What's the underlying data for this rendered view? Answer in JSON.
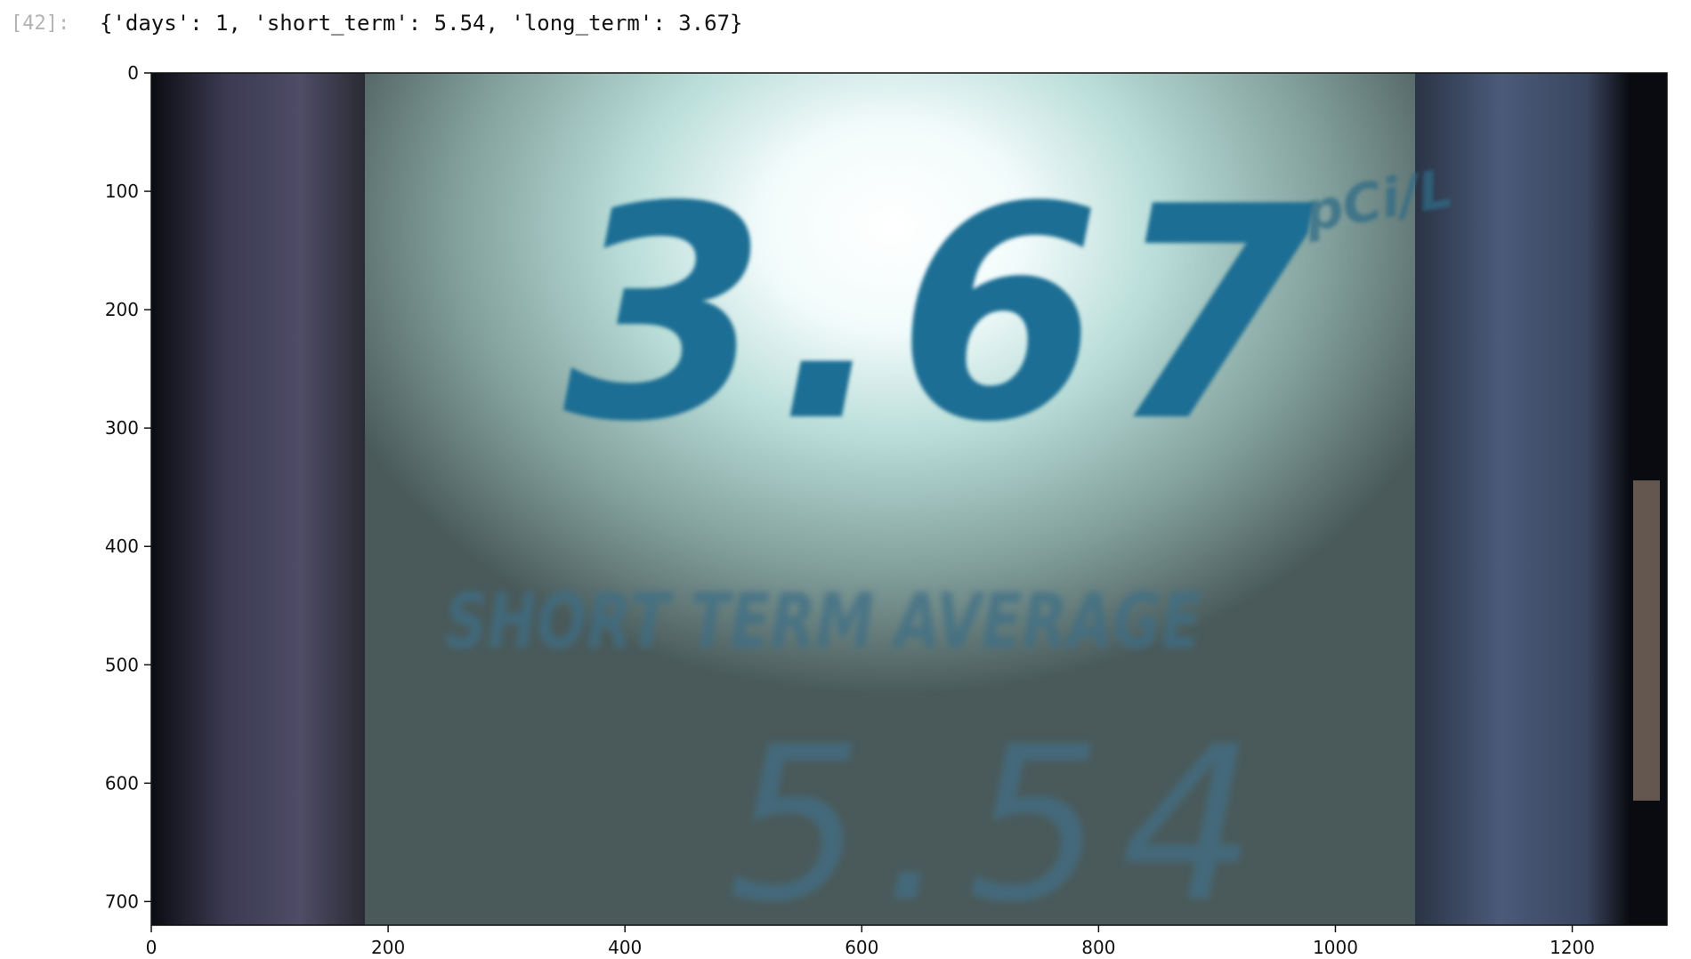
{
  "cell": {
    "prompt": "[42]:",
    "output_text": "{'days': 1, 'short_term': 5.54, 'long_term': 3.67}"
  },
  "figure": {
    "image_content": {
      "main_reading": "3.67",
      "unit_top": "pCi/L",
      "section_label": "SHORT TERM AVERAGE",
      "secondary_reading": "5.54"
    },
    "x_axis": {
      "range": [
        0,
        1280
      ],
      "ticks": [
        {
          "value": 0,
          "label": "0"
        },
        {
          "value": 200,
          "label": "200"
        },
        {
          "value": 400,
          "label": "400"
        },
        {
          "value": 600,
          "label": "600"
        },
        {
          "value": 800,
          "label": "800"
        },
        {
          "value": 1000,
          "label": "1000"
        },
        {
          "value": 1200,
          "label": "1200"
        }
      ]
    },
    "y_axis": {
      "range": [
        0,
        720
      ],
      "ticks": [
        {
          "value": 0,
          "label": "0"
        },
        {
          "value": 100,
          "label": "100"
        },
        {
          "value": 200,
          "label": "200"
        },
        {
          "value": 300,
          "label": "300"
        },
        {
          "value": 400,
          "label": "400"
        },
        {
          "value": 500,
          "label": "500"
        },
        {
          "value": 600,
          "label": "600"
        },
        {
          "value": 700,
          "label": "700"
        }
      ]
    }
  }
}
